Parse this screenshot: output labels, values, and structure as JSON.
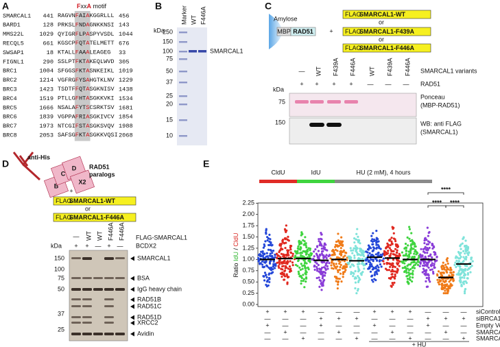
{
  "panel_a": {
    "label": "A",
    "motif": [
      "F",
      "xx",
      "A",
      " motif"
    ],
    "rows": [
      {
        "name": "SMARCAL1",
        "start": 441,
        "seq": [
          "RAGVN",
          "F",
          "AI",
          "A",
          "KGGRLLL"
        ],
        "end": 456
      },
      {
        "name": "BARD1",
        "start": 128,
        "seq": [
          "PRKSL",
          "F",
          "ND",
          "A",
          "GNKKNSI"
        ],
        "end": 143
      },
      {
        "name": "MMS22L",
        "start": 1029,
        "seq": [
          "QYIGR",
          "F",
          "LP",
          "A",
          "SPYVSDL"
        ],
        "end": 1044
      },
      {
        "name": "RECQL5",
        "start": 661,
        "seq": [
          "KGSCP",
          "F",
          "QT",
          "A",
          "TELMETT"
        ],
        "end": 676
      },
      {
        "name": "SWSAP1",
        "start": 18,
        "seq": [
          "KTALL",
          "F",
          "AA",
          "A",
          "LEAGEG"
        ],
        "end": 33
      },
      {
        "name": "FIGNL1",
        "start": 290,
        "seq": [
          "SSLPT",
          "F",
          "KT",
          "A",
          "KEQLWVD"
        ],
        "end": 305
      },
      {
        "name": "BRC1",
        "start": 1004,
        "seq": [
          "SFGGS",
          "F",
          "KT",
          "A",
          "SNKEIKL"
        ],
        "end": 1019
      },
      {
        "name": "BRC2",
        "start": 1214,
        "seq": [
          "VGFRG",
          "F",
          "YS",
          "A",
          "HGTKLNV"
        ],
        "end": 1229
      },
      {
        "name": "BRC3",
        "start": 1423,
        "seq": [
          "TSDTF",
          "F",
          "QT",
          "A",
          "SGKNISV"
        ],
        "end": 1438
      },
      {
        "name": "BRC4",
        "start": 1519,
        "seq": [
          "PTLLG",
          "F",
          "HT",
          "A",
          "SGKKVKI"
        ],
        "end": 1534
      },
      {
        "name": "BRC5",
        "start": 1666,
        "seq": [
          "NSALA",
          "F",
          "YT",
          "S",
          "CSRKTSV"
        ],
        "end": 1681
      },
      {
        "name": "BRC6",
        "start": 1839,
        "seq": [
          "VGPPA",
          "F",
          "RI",
          "A",
          "SGKIVCV"
        ],
        "end": 1854
      },
      {
        "name": "BRC7",
        "start": 1973,
        "seq": [
          "NTCGI",
          "F",
          "ST",
          "A",
          "SGKSVQV"
        ],
        "end": 1988
      },
      {
        "name": "BRC8",
        "start": 2053,
        "seq": [
          "SAFSG",
          "F",
          "KT",
          "A",
          "SGKKVQSI"
        ],
        "end": 2068
      }
    ]
  },
  "panel_b": {
    "label": "B",
    "unit": "kDa",
    "markers": [
      250,
      150,
      100,
      75,
      50,
      37,
      25,
      20,
      15,
      10
    ],
    "lanes": [
      "Marker",
      "WT",
      "F446A"
    ],
    "band": "SMARCAL1"
  },
  "panel_c": {
    "label": "C",
    "resin": "Amylose",
    "tag": "MBP",
    "bait": "RAD51",
    "plus": "+",
    "flag": "FLAG",
    "constructs": [
      "SMARCAL1-WT",
      "SMARCAL1-F439A",
      "SMARCAL1-F446A"
    ],
    "or": "or",
    "variants": [
      "—",
      "WT",
      "F439A",
      "F446A",
      "WT",
      "F439A",
      "F446A"
    ],
    "variants_label": "SMARCAL1 variants",
    "rad51": [
      "+",
      "+",
      "+",
      "+",
      "—",
      "—",
      "—"
    ],
    "rad51_label": "RAD51",
    "unit": "kDa",
    "ponceau_marker": 75,
    "ponceau_label": [
      "Ponceau",
      "(MBP-RAD51)"
    ],
    "wb_marker": 150,
    "wb_label": [
      "WB: anti FLAG",
      "(SMARCAL1)"
    ]
  },
  "panel_d": {
    "label": "D",
    "antibody": "anti-His",
    "complex": [
      "C",
      "D",
      "B",
      "X2"
    ],
    "complex_label": [
      "RAD51",
      "paralogs"
    ],
    "plus": "+",
    "flag": "FLAG",
    "constructs": [
      "SMARCAL1-WT",
      "SMARCAL1-F446A"
    ],
    "or": "or",
    "flag_row": [
      "—",
      "WT",
      "WT",
      "F446A",
      "F446A"
    ],
    "flag_row_label": "FLAG-SMARCAL1",
    "bcdx2_row": [
      "+",
      "+",
      "—",
      "+",
      "—"
    ],
    "bcdx2_label": "BCDX2",
    "unit": "kDa",
    "markers": [
      150,
      100,
      75,
      50,
      37,
      25
    ],
    "bands": [
      "SMARCAL1",
      "BSA",
      "IgG heavy chain",
      "RAD51B",
      "RAD51C",
      "RAD51D",
      "XRCC2",
      "Avidin"
    ]
  },
  "panel_e": {
    "label": "E",
    "legend": [
      "CldU",
      "IdU",
      "HU (2 mM), 4 hours"
    ],
    "y_label": [
      "Ratio ",
      "IdU",
      " / ",
      "CldU"
    ],
    "yticks": [
      "0.00",
      "0.25",
      "0.50",
      "0.75",
      "1.00",
      "1.25",
      "1.50",
      "1.75",
      "2.00",
      "2.25"
    ],
    "significance": [
      "****",
      "****",
      "****"
    ],
    "rows": [
      {
        "label": "siControl",
        "marks": [
          "+",
          "+",
          "+",
          "—",
          "—",
          "—",
          "+",
          "+",
          "+",
          "—",
          "—",
          "—"
        ]
      },
      {
        "label": "siBRCA1",
        "marks": [
          "—",
          "—",
          "—",
          "+",
          "+",
          "+",
          "—",
          "—",
          "—",
          "+",
          "+",
          "+"
        ]
      },
      {
        "label": "Empty Vector",
        "marks": [
          "+",
          "—",
          "—",
          "+",
          "—",
          "—",
          "+",
          "—",
          "—",
          "+",
          "—",
          "—"
        ]
      },
      {
        "label": "SMARCAL1-WT",
        "marks": [
          "—",
          "+",
          "—",
          "—",
          "+",
          "—",
          "—",
          "+",
          "—",
          "—",
          "+",
          "—"
        ]
      },
      {
        "label": "SMARCAL1-F446A",
        "marks": [
          "—",
          "—",
          "+",
          "—",
          "—",
          "+",
          "—",
          "—",
          "+",
          "—",
          "—",
          "+"
        ]
      }
    ],
    "hu": "+ HU"
  }
}
